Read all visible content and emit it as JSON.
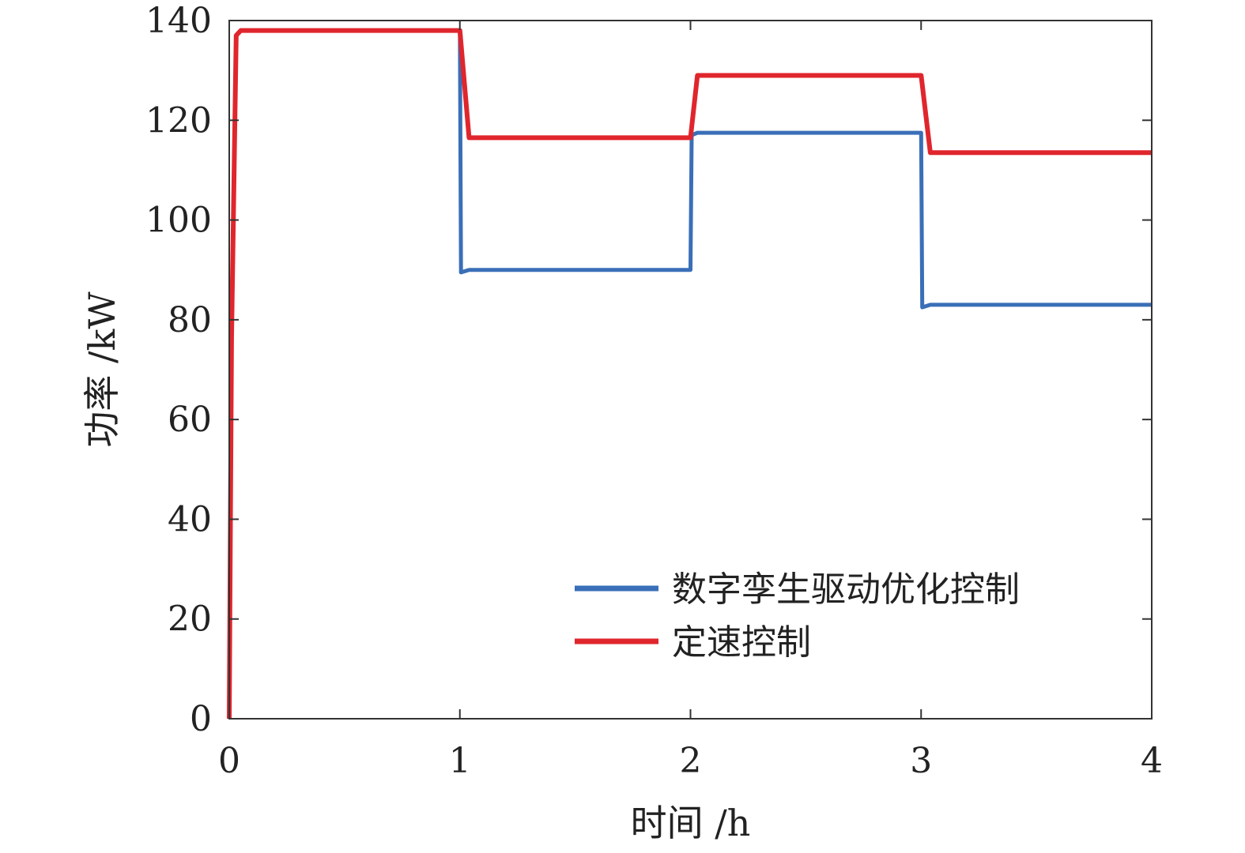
{
  "chart_data": {
    "type": "line",
    "xlabel": "时间 /h",
    "ylabel": "功率 /kW",
    "xlim": [
      0,
      4
    ],
    "ylim": [
      0,
      140
    ],
    "xticks": [
      0,
      1,
      2,
      3,
      4
    ],
    "yticks": [
      0,
      20,
      40,
      60,
      80,
      100,
      120,
      140
    ],
    "grid": false,
    "legend_position": "bottom-right",
    "series": [
      {
        "name": "数字孪生驱动优化控制",
        "color": "#3a6fb8",
        "x": [
          0.0,
          0.01,
          0.03,
          0.05,
          1.0,
          1.005,
          1.04,
          2.0,
          2.005,
          2.03,
          3.0,
          3.005,
          3.04,
          4.0
        ],
        "y": [
          0,
          76,
          137,
          138,
          138,
          89.5,
          90,
          90,
          117,
          117.5,
          117.5,
          82.5,
          83,
          83
        ]
      },
      {
        "name": "定速控制",
        "color": "#e0262d",
        "x": [
          0.0,
          0.01,
          0.03,
          0.05,
          1.0,
          1.04,
          2.0,
          2.03,
          3.0,
          3.04,
          4.0
        ],
        "y": [
          0,
          76,
          137,
          138,
          138,
          116.5,
          116.5,
          129,
          129,
          113.5,
          113.5
        ]
      }
    ]
  }
}
